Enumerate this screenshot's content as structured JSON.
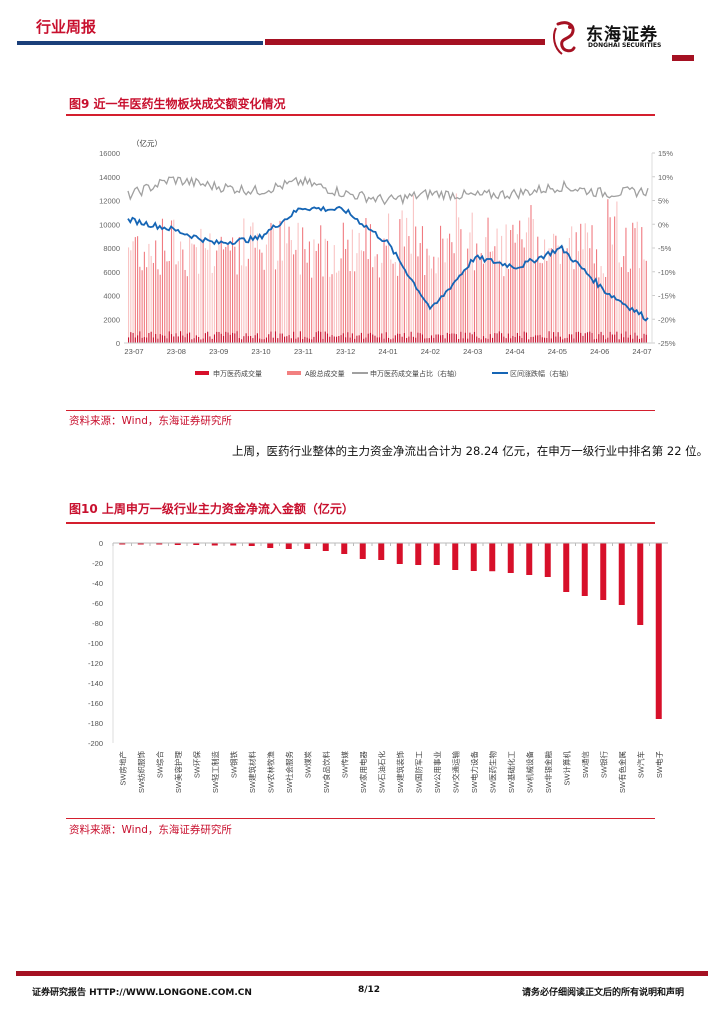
{
  "header": {
    "title": "行业周报",
    "logo_cn": "东海证券",
    "logo_en": "DONGHAI SECURITIES"
  },
  "figure9": {
    "title": "图9  近一年医药生物板块成交额变化情况",
    "source": "资料来源：Wind，东海证券研究所",
    "chart_data": {
      "type": "bar+line",
      "title": "近一年医药生物板块成交额变化情况",
      "unit_label": "（亿元）",
      "x_ticks": [
        "23-07",
        "23-08",
        "23-09",
        "23-10",
        "23-11",
        "23-12",
        "24-01",
        "24-02",
        "24-03",
        "24-04",
        "24-05",
        "24-06",
        "24-07"
      ],
      "y_left": {
        "ticks": [
          0,
          2000,
          4000,
          6000,
          8000,
          10000,
          12000,
          14000,
          16000
        ],
        "range": [
          0,
          16000
        ]
      },
      "y_right": {
        "ticks": [
          "15%",
          "10%",
          "5%",
          "0%",
          "-5%",
          "-10%",
          "-15%",
          "-20%",
          "-25%"
        ],
        "range": [
          -25,
          15
        ]
      },
      "legend": [
        "申万医药成交量",
        "A股总成交量",
        "申万医药成交量占比（右轴）",
        "区间涨跌幅（右轴）"
      ],
      "series": [
        {
          "name": "申万医药成交量",
          "axis": "left",
          "type": "bar",
          "color": "#d7102a",
          "approx_range": [
            300,
            1100
          ]
        },
        {
          "name": "A股总成交量",
          "axis": "left",
          "type": "bar",
          "color": "#f28080",
          "approx_range": [
            5500,
            11500
          ]
        },
        {
          "name": "申万医药成交量占比（右轴）",
          "axis": "right",
          "type": "line",
          "color": "#a0a0a0",
          "monthly_approx": [
            6.0,
            9.5,
            8.0,
            7.0,
            9.0,
            6.5,
            5.0,
            6.5,
            6.0,
            6.5,
            8.0,
            6.5,
            7.0
          ]
        },
        {
          "name": "区间涨跌幅（右轴）",
          "axis": "right",
          "type": "line",
          "color": "#1565b5",
          "monthly_approx": [
            1.0,
            -1.0,
            -4.0,
            -3.0,
            3.5,
            3.0,
            -4.0,
            -18.0,
            -7.0,
            -9.0,
            -5.0,
            -14.0,
            -20.0
          ]
        }
      ]
    }
  },
  "paragraph": {
    "text": "上周，医药行业整体的主力资金净流出合计为 28.24 亿元，在申万一级行业中排名第 22 位。"
  },
  "figure10": {
    "title": "图10  上周申万一级行业主力资金净流入金额（亿元）",
    "source": "资料来源：Wind，东海证券研究所",
    "chart_data": {
      "type": "bar",
      "title": "上周申万一级行业主力资金净流入金额（亿元）",
      "ylabel": "亿元",
      "ylim": [
        -200,
        0
      ],
      "y_ticks": [
        0,
        -20,
        -40,
        -60,
        -80,
        -100,
        -120,
        -140,
        -160,
        -180,
        -200
      ],
      "categories": [
        "SW房地产",
        "SW纺织服饰",
        "SW综合",
        "SW美容护理",
        "SW环保",
        "SW轻工制造",
        "SW钢铁",
        "SW建筑材料",
        "SW农林牧渔",
        "SW社会服务",
        "SW煤炭",
        "SW食品饮料",
        "SW传媒",
        "SW家用电器",
        "SW石油石化",
        "SW建筑装饰",
        "SW国防军工",
        "SW公用事业",
        "SW交通运输",
        "SW电力设备",
        "SW医药生物",
        "SW基础化工",
        "SW机械设备",
        "SW非银金融",
        "SW计算机",
        "SW通信",
        "SW银行",
        "SW有色金属",
        "SW汽车",
        "SW电子"
      ],
      "values": [
        -0.3,
        -0.5,
        -1.5,
        -2,
        -2,
        -2.5,
        -2.5,
        -3,
        -5,
        -6,
        -6,
        -8,
        -11,
        -16,
        -17,
        -21,
        -22,
        -22,
        -27,
        -28,
        -28.24,
        -30,
        -32,
        -34,
        -49,
        -53,
        -57,
        -62,
        -82,
        -176
      ],
      "color": "#d7102a"
    }
  },
  "footer": {
    "left": "证券研究报告    HTTP://WWW.LONGONE.COM.CN",
    "page": "8/12",
    "right": "请务必仔细阅读正文后的所有说明和声明"
  }
}
